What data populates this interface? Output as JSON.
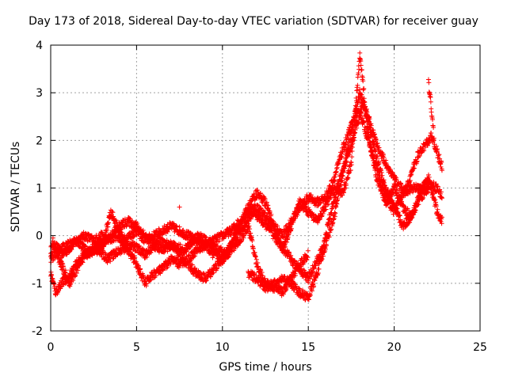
{
  "chart_data": {
    "type": "scatter",
    "title": "Day 173 of 2018, Sidereal Day-to-day VTEC variation (SDTVAR) for receiver guay",
    "xlabel": "GPS time / hours",
    "ylabel": "SDTVAR / TECUs",
    "xlim": [
      0,
      25
    ],
    "ylim": [
      -2,
      4
    ],
    "xticks": [
      0,
      5,
      10,
      15,
      20,
      25
    ],
    "yticks": [
      -2,
      -1,
      0,
      1,
      2,
      3,
      4
    ],
    "grid": true,
    "marker": "+",
    "color": "#ff0000",
    "series": [
      {
        "name": "SDTVAR",
        "traces": [
          {
            "x": [
              0,
              0.3,
              0.6,
              1.0,
              1.5,
              2.0,
              2.5,
              3.0,
              3.4,
              3.8,
              4.2,
              4.6,
              5.0,
              5.5,
              6.0,
              6.5,
              7.0,
              7.5,
              8.0,
              8.5,
              9.0,
              9.5,
              10.0,
              10.5,
              11.0,
              11.5,
              12.0,
              12.5,
              13.0,
              13.5,
              14.0,
              14.5,
              15.0,
              15.5,
              16.0,
              16.5,
              17.0,
              17.5,
              18.0,
              18.5,
              19.0,
              19.5,
              20.0,
              20.5,
              21.0,
              21.5,
              22.0,
              22.5,
              22.8
            ],
            "y": [
              -0.3,
              -0.2,
              -0.4,
              -0.3,
              -0.1,
              0.0,
              -0.1,
              0.0,
              -0.1,
              0.0,
              -0.1,
              0.0,
              0.1,
              -0.1,
              0.0,
              0.1,
              0.2,
              0.1,
              0.0,
              -0.1,
              -0.2,
              -0.1,
              0.0,
              0.1,
              0.3,
              0.5,
              0.6,
              0.4,
              0.2,
              0.0,
              0.3,
              0.6,
              0.8,
              0.7,
              0.8,
              1.2,
              1.8,
              2.3,
              2.6,
              2.0,
              1.4,
              0.8,
              0.5,
              0.9,
              1.0,
              1.0,
              1.1,
              1.0,
              0.8
            ]
          },
          {
            "x": [
              0,
              0.3,
              0.6,
              1.0,
              1.5,
              2.0,
              2.5,
              3.0,
              3.5,
              4.0,
              4.5,
              5.0,
              5.5,
              6.0,
              6.5,
              7.0,
              7.5,
              8.0,
              8.5,
              9.0,
              9.5,
              10.0,
              10.5,
              11.0,
              11.5,
              12.0,
              12.5,
              13.0,
              13.5,
              14.0,
              14.5,
              15.0,
              15.5,
              16.0,
              16.5,
              17.0,
              17.5,
              18.0,
              18.5,
              19.0,
              19.5,
              20.0,
              20.5,
              21.0,
              21.5,
              22.0
            ],
            "y": [
              -0.8,
              -1.2,
              -1.0,
              -0.9,
              -0.6,
              -0.4,
              -0.3,
              -0.2,
              0.0,
              0.2,
              0.3,
              0.2,
              0.0,
              -0.2,
              -0.3,
              -0.2,
              -0.4,
              -0.6,
              -0.8,
              -0.9,
              -0.7,
              -0.5,
              -0.3,
              -0.1,
              0.2,
              -0.6,
              -1.0,
              -1.1,
              -0.9,
              -1.0,
              -1.2,
              -1.3,
              -0.8,
              -0.2,
              0.4,
              1.3,
              2.2,
              3.0,
              2.4,
              1.6,
              1.0,
              0.6,
              0.2,
              0.4,
              0.8,
              1.0
            ]
          },
          {
            "x": [
              0,
              0.5,
              1.0,
              1.5,
              2.0,
              2.5,
              3.0,
              3.5,
              4.0,
              4.5,
              5.0,
              5.5,
              6.0,
              6.5,
              7.0,
              7.5,
              8.0,
              8.5,
              9.0,
              9.5,
              10.0,
              10.5,
              11.0,
              11.5,
              12.0,
              12.5,
              13.0,
              13.5,
              14.0,
              14.5,
              15.0,
              15.5,
              16.0,
              16.5,
              17.0,
              17.5,
              18.0,
              18.5,
              19.0,
              19.5,
              20.0,
              20.5,
              21.0,
              21.5,
              22.0,
              22.5,
              22.8
            ],
            "y": [
              -0.5,
              -0.3,
              -0.2,
              -0.1,
              -0.3,
              -0.4,
              -0.2,
              0.5,
              0.1,
              -0.3,
              -0.6,
              -1.0,
              -0.8,
              -0.7,
              -0.5,
              -0.6,
              -0.5,
              -0.3,
              -0.2,
              -0.4,
              -0.5,
              -0.2,
              0.2,
              0.6,
              0.9,
              0.7,
              0.2,
              -0.3,
              0.2,
              0.7,
              0.5,
              0.3,
              0.6,
              1.0,
              0.9,
              1.5,
              3.8,
              2.1,
              1.2,
              0.7,
              1.0,
              0.6,
              0.4,
              0.9,
              1.2,
              0.5,
              0.3
            ]
          },
          {
            "x": [
              0.1,
              0.6,
              1.1,
              1.8,
              2.6,
              3.3,
              4.0,
              4.8,
              5.5,
              6.3,
              7.0,
              7.8,
              8.6,
              9.4,
              10.2,
              11.0,
              11.8,
              12.6,
              13.4,
              14.2,
              15.0,
              15.8,
              16.6,
              17.4,
              18.2,
              19.0,
              19.8,
              20.6,
              21.4,
              22.2,
              22.8
            ],
            "y": [
              -0.1,
              -0.6,
              -1.0,
              -0.5,
              -0.2,
              -0.5,
              -0.3,
              -0.2,
              -0.4,
              -0.1,
              -0.2,
              -0.3,
              0.0,
              -0.2,
              -0.4,
              0.1,
              0.5,
              0.2,
              -0.2,
              -0.6,
              -0.9,
              -0.3,
              0.9,
              1.8,
              2.8,
              1.9,
              1.3,
              0.9,
              1.7,
              2.1,
              1.4
            ]
          },
          {
            "x": [
              11.5,
              12.0,
              12.5,
              13.0,
              13.5,
              14.0,
              14.5,
              15.0
            ],
            "y": [
              -0.8,
              -0.9,
              -1.1,
              -1.0,
              -1.2,
              -0.9,
              -0.6,
              -0.4
            ]
          },
          {
            "x": [
              22.0,
              22.1,
              22.2,
              22.3
            ],
            "y": [
              3.2,
              2.9,
              2.5,
              2.2
            ]
          },
          {
            "x": [
              7.5
            ],
            "y": [
              0.6
            ]
          }
        ]
      }
    ]
  }
}
